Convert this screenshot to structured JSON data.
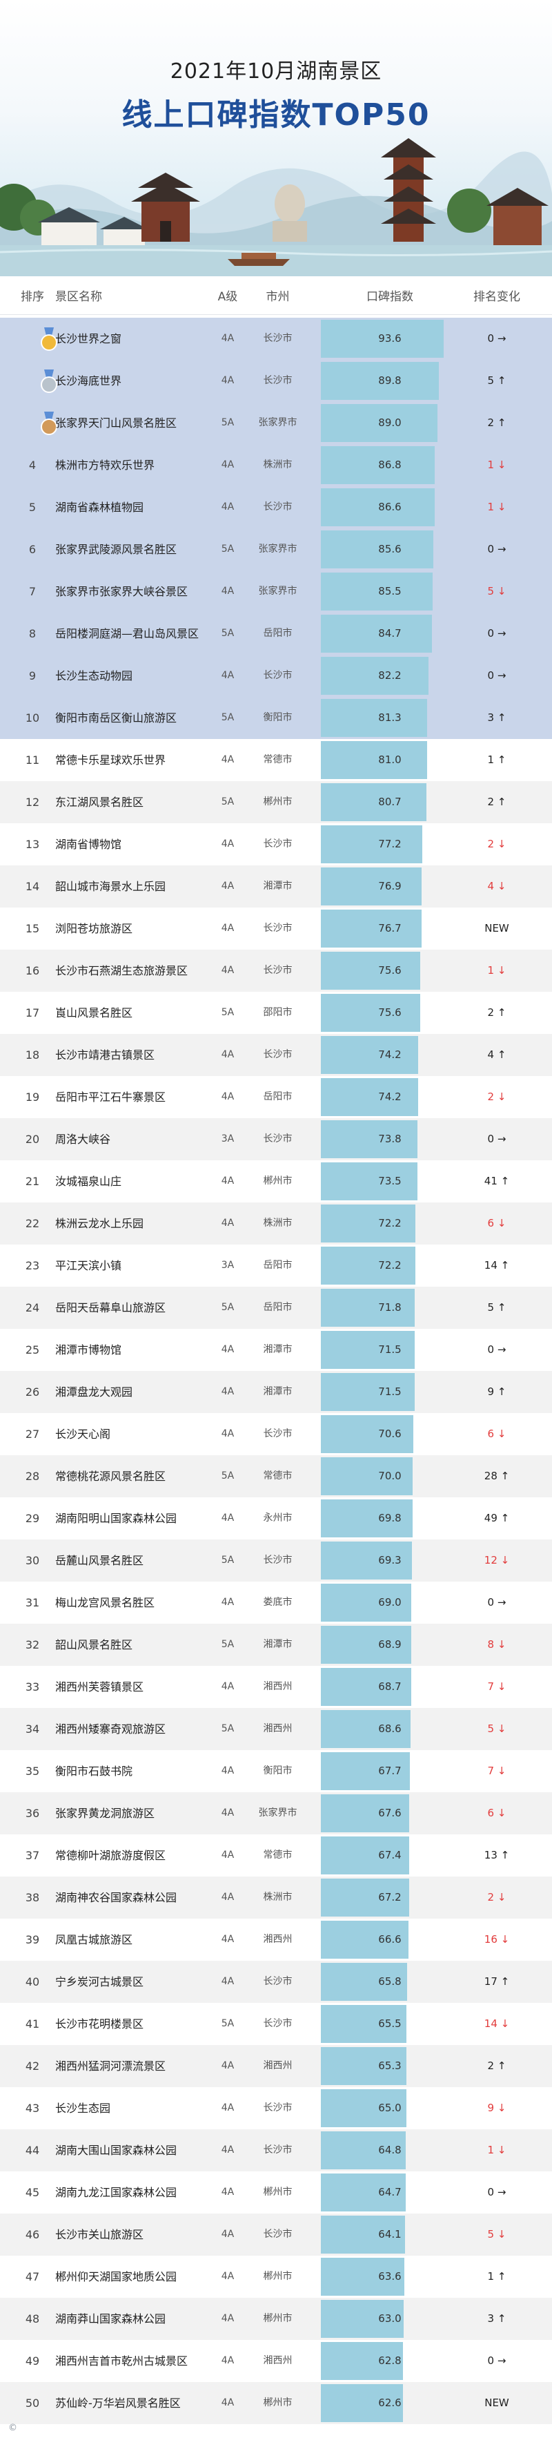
{
  "header": {
    "title_top": "2021年10月湖南景区",
    "title_main": "线上口碑指数TOP50"
  },
  "table": {
    "columns": [
      "排序",
      "景区名称",
      "A级",
      "市州",
      "口碑指数",
      "排名变化"
    ]
  },
  "colors": {
    "bar": "#9ccfe0",
    "top_row_bg": "#c9d5ea",
    "row_alt_bg": "#f2f2f2",
    "row_bg": "#ffffff",
    "down": "#e23b3b",
    "title": "#1f4f9a"
  },
  "chart_data": {
    "type": "table",
    "value_range": [
      0,
      100
    ],
    "rows": [
      {
        "rank": "1",
        "name": "长沙世界之窗",
        "grade": "4A",
        "city": "长沙市",
        "value": 93.6,
        "change": "0 →",
        "dir": "flat"
      },
      {
        "rank": "2",
        "name": "长沙海底世界",
        "grade": "4A",
        "city": "长沙市",
        "value": 89.8,
        "change": "5 ↑",
        "dir": "up"
      },
      {
        "rank": "3",
        "name": "张家界天门山风景名胜区",
        "grade": "5A",
        "city": "张家界市",
        "value": 89.0,
        "change": "2 ↑",
        "dir": "up"
      },
      {
        "rank": "4",
        "name": "株洲市方特欢乐世界",
        "grade": "4A",
        "city": "株洲市",
        "value": 86.8,
        "change": "1 ↓",
        "dir": "down"
      },
      {
        "rank": "5",
        "name": "湖南省森林植物园",
        "grade": "4A",
        "city": "长沙市",
        "value": 86.6,
        "change": "1 ↓",
        "dir": "down"
      },
      {
        "rank": "6",
        "name": "张家界武陵源风景名胜区",
        "grade": "5A",
        "city": "张家界市",
        "value": 85.6,
        "change": "0 →",
        "dir": "flat"
      },
      {
        "rank": "7",
        "name": "张家界市张家界大峡谷景区",
        "grade": "4A",
        "city": "张家界市",
        "value": 85.5,
        "change": "5 ↓",
        "dir": "down"
      },
      {
        "rank": "8",
        "name": "岳阳楼洞庭湖—君山岛风景区",
        "grade": "5A",
        "city": "岳阳市",
        "value": 84.7,
        "change": "0 →",
        "dir": "flat"
      },
      {
        "rank": "9",
        "name": "长沙生态动物园",
        "grade": "4A",
        "city": "长沙市",
        "value": 82.2,
        "change": "0 →",
        "dir": "flat"
      },
      {
        "rank": "10",
        "name": "衡阳市南岳区衡山旅游区",
        "grade": "5A",
        "city": "衡阳市",
        "value": 81.3,
        "change": "3 ↑",
        "dir": "up"
      },
      {
        "rank": "11",
        "name": "常德卡乐星球欢乐世界",
        "grade": "4A",
        "city": "常德市",
        "value": 81.0,
        "change": "1 ↑",
        "dir": "up"
      },
      {
        "rank": "12",
        "name": "东江湖风景名胜区",
        "grade": "5A",
        "city": "郴州市",
        "value": 80.7,
        "change": "2 ↑",
        "dir": "up"
      },
      {
        "rank": "13",
        "name": "湖南省博物馆",
        "grade": "4A",
        "city": "长沙市",
        "value": 77.2,
        "change": "2 ↓",
        "dir": "down"
      },
      {
        "rank": "14",
        "name": "韶山城市海景水上乐园",
        "grade": "4A",
        "city": "湘潭市",
        "value": 76.9,
        "change": "4 ↓",
        "dir": "down"
      },
      {
        "rank": "15",
        "name": "浏阳苍坊旅游区",
        "grade": "4A",
        "city": "长沙市",
        "value": 76.7,
        "change": "NEW",
        "dir": "new"
      },
      {
        "rank": "16",
        "name": "长沙市石燕湖生态旅游景区",
        "grade": "4A",
        "city": "长沙市",
        "value": 75.6,
        "change": "1 ↓",
        "dir": "down"
      },
      {
        "rank": "17",
        "name": "崀山风景名胜区",
        "grade": "5A",
        "city": "邵阳市",
        "value": 75.6,
        "change": "2 ↑",
        "dir": "up"
      },
      {
        "rank": "18",
        "name": "长沙市靖港古镇景区",
        "grade": "4A",
        "city": "长沙市",
        "value": 74.2,
        "change": "4 ↑",
        "dir": "up"
      },
      {
        "rank": "19",
        "name": "岳阳市平江石牛寨景区",
        "grade": "4A",
        "city": "岳阳市",
        "value": 74.2,
        "change": "2 ↓",
        "dir": "down"
      },
      {
        "rank": "20",
        "name": "周洛大峡谷",
        "grade": "3A",
        "city": "长沙市",
        "value": 73.8,
        "change": "0 →",
        "dir": "flat"
      },
      {
        "rank": "21",
        "name": "汝城福泉山庄",
        "grade": "4A",
        "city": "郴州市",
        "value": 73.5,
        "change": "41 ↑",
        "dir": "up"
      },
      {
        "rank": "22",
        "name": "株洲云龙水上乐园",
        "grade": "4A",
        "city": "株洲市",
        "value": 72.2,
        "change": "6 ↓",
        "dir": "down"
      },
      {
        "rank": "23",
        "name": "平江天滨小镇",
        "grade": "3A",
        "city": "岳阳市",
        "value": 72.2,
        "change": "14 ↑",
        "dir": "up"
      },
      {
        "rank": "24",
        "name": "岳阳天岳幕阜山旅游区",
        "grade": "5A",
        "city": "岳阳市",
        "value": 71.8,
        "change": "5 ↑",
        "dir": "up"
      },
      {
        "rank": "25",
        "name": "湘潭市博物馆",
        "grade": "4A",
        "city": "湘潭市",
        "value": 71.5,
        "change": "0 →",
        "dir": "flat"
      },
      {
        "rank": "26",
        "name": "湘潭盘龙大观园",
        "grade": "4A",
        "city": "湘潭市",
        "value": 71.5,
        "change": "9 ↑",
        "dir": "up"
      },
      {
        "rank": "27",
        "name": "长沙天心阁",
        "grade": "4A",
        "city": "长沙市",
        "value": 70.6,
        "change": "6 ↓",
        "dir": "down"
      },
      {
        "rank": "28",
        "name": "常德桃花源风景名胜区",
        "grade": "5A",
        "city": "常德市",
        "value": 70.0,
        "change": "28 ↑",
        "dir": "up"
      },
      {
        "rank": "29",
        "name": "湖南阳明山国家森林公园",
        "grade": "4A",
        "city": "永州市",
        "value": 69.8,
        "change": "49 ↑",
        "dir": "up"
      },
      {
        "rank": "30",
        "name": "岳麓山风景名胜区",
        "grade": "5A",
        "city": "长沙市",
        "value": 69.3,
        "change": "12 ↓",
        "dir": "down"
      },
      {
        "rank": "31",
        "name": "梅山龙宫风景名胜区",
        "grade": "4A",
        "city": "娄底市",
        "value": 69.0,
        "change": "0 →",
        "dir": "flat"
      },
      {
        "rank": "32",
        "name": "韶山风景名胜区",
        "grade": "5A",
        "city": "湘潭市",
        "value": 68.9,
        "change": "8 ↓",
        "dir": "down"
      },
      {
        "rank": "33",
        "name": "湘西州芙蓉镇景区",
        "grade": "4A",
        "city": "湘西州",
        "value": 68.7,
        "change": "7 ↓",
        "dir": "down"
      },
      {
        "rank": "34",
        "name": "湘西州矮寨奇观旅游区",
        "grade": "5A",
        "city": "湘西州",
        "value": 68.6,
        "change": "5 ↓",
        "dir": "down"
      },
      {
        "rank": "35",
        "name": "衡阳市石鼓书院",
        "grade": "4A",
        "city": "衡阳市",
        "value": 67.7,
        "change": "7 ↓",
        "dir": "down"
      },
      {
        "rank": "36",
        "name": "张家界黄龙洞旅游区",
        "grade": "4A",
        "city": "张家界市",
        "value": 67.6,
        "change": "6 ↓",
        "dir": "down"
      },
      {
        "rank": "37",
        "name": "常德柳叶湖旅游度假区",
        "grade": "4A",
        "city": "常德市",
        "value": 67.4,
        "change": "13 ↑",
        "dir": "up"
      },
      {
        "rank": "38",
        "name": "湖南神农谷国家森林公园",
        "grade": "4A",
        "city": "株洲市",
        "value": 67.2,
        "change": "2 ↓",
        "dir": "down"
      },
      {
        "rank": "39",
        "name": "凤凰古城旅游区",
        "grade": "4A",
        "city": "湘西州",
        "value": 66.6,
        "change": "16 ↓",
        "dir": "down"
      },
      {
        "rank": "40",
        "name": "宁乡炭河古城景区",
        "grade": "4A",
        "city": "长沙市",
        "value": 65.8,
        "change": "17 ↑",
        "dir": "up"
      },
      {
        "rank": "41",
        "name": "长沙市花明楼景区",
        "grade": "5A",
        "city": "长沙市",
        "value": 65.5,
        "change": "14 ↓",
        "dir": "down"
      },
      {
        "rank": "42",
        "name": "湘西州猛洞河漂流景区",
        "grade": "4A",
        "city": "湘西州",
        "value": 65.3,
        "change": "2 ↑",
        "dir": "up"
      },
      {
        "rank": "43",
        "name": "长沙生态园",
        "grade": "4A",
        "city": "长沙市",
        "value": 65.0,
        "change": "9 ↓",
        "dir": "down"
      },
      {
        "rank": "44",
        "name": "湖南大围山国家森林公园",
        "grade": "4A",
        "city": "长沙市",
        "value": 64.8,
        "change": "1 ↓",
        "dir": "down"
      },
      {
        "rank": "45",
        "name": "湖南九龙江国家森林公园",
        "grade": "4A",
        "city": "郴州市",
        "value": 64.7,
        "change": "0 →",
        "dir": "flat"
      },
      {
        "rank": "46",
        "name": "长沙市关山旅游区",
        "grade": "4A",
        "city": "长沙市",
        "value": 64.1,
        "change": "5 ↓",
        "dir": "down"
      },
      {
        "rank": "47",
        "name": "郴州仰天湖国家地质公园",
        "grade": "4A",
        "city": "郴州市",
        "value": 63.6,
        "change": "1 ↑",
        "dir": "up"
      },
      {
        "rank": "48",
        "name": "湖南莽山国家森林公园",
        "grade": "4A",
        "city": "郴州市",
        "value": 63.0,
        "change": "3 ↑",
        "dir": "up"
      },
      {
        "rank": "49",
        "name": "湘西州吉首市乾州古城景区",
        "grade": "4A",
        "city": "湘西州",
        "value": 62.8,
        "change": "0 →",
        "dir": "flat"
      },
      {
        "rank": "50",
        "name": "苏仙岭-万华岩风景名胜区",
        "grade": "4A",
        "city": "郴州市",
        "value": 62.6,
        "change": "NEW",
        "dir": "new"
      }
    ]
  }
}
